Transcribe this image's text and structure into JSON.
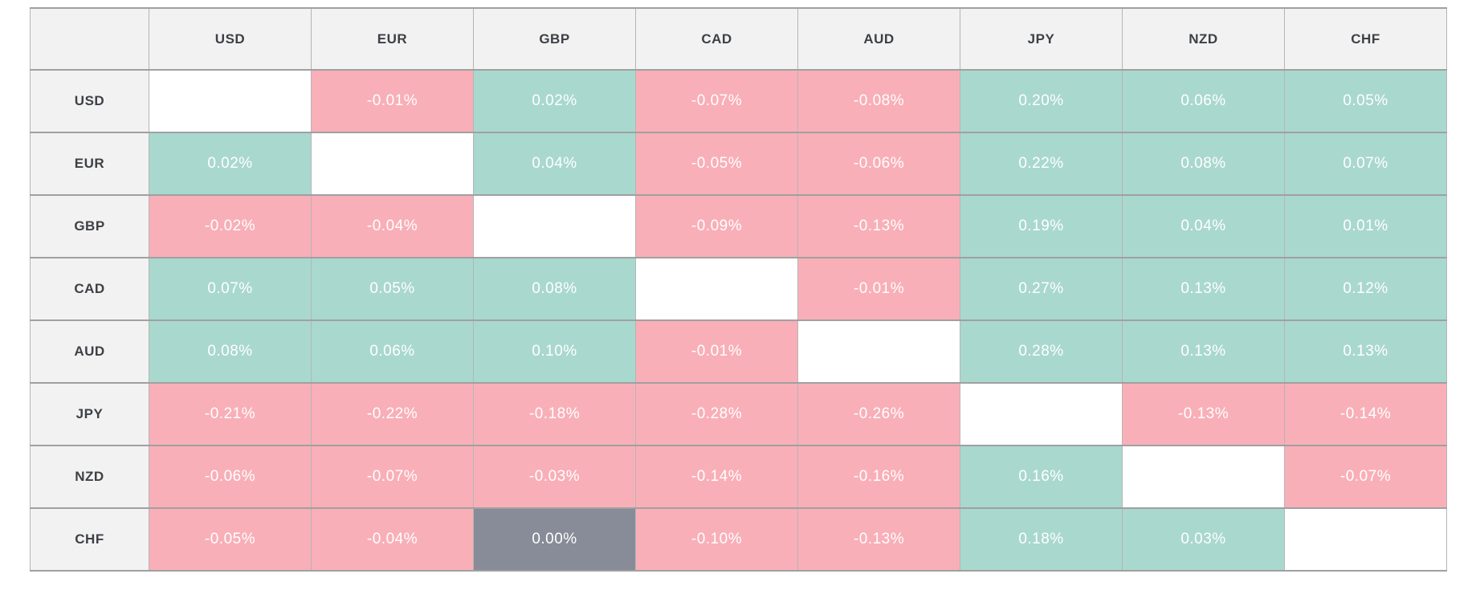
{
  "matrix": {
    "columns": [
      "USD",
      "EUR",
      "GBP",
      "CAD",
      "AUD",
      "JPY",
      "NZD",
      "CHF"
    ],
    "rows": [
      {
        "label": "USD",
        "values": [
          "",
          "-0.01%",
          "0.02%",
          "-0.07%",
          "-0.08%",
          "0.20%",
          "0.06%",
          "0.05%"
        ]
      },
      {
        "label": "EUR",
        "values": [
          "0.02%",
          "",
          "0.04%",
          "-0.05%",
          "-0.06%",
          "0.22%",
          "0.08%",
          "0.07%"
        ]
      },
      {
        "label": "GBP",
        "values": [
          "-0.02%",
          "-0.04%",
          "",
          "-0.09%",
          "-0.13%",
          "0.19%",
          "0.04%",
          "0.01%"
        ]
      },
      {
        "label": "CAD",
        "values": [
          "0.07%",
          "0.05%",
          "0.08%",
          "",
          "-0.01%",
          "0.27%",
          "0.13%",
          "0.12%"
        ]
      },
      {
        "label": "AUD",
        "values": [
          "0.08%",
          "0.06%",
          "0.10%",
          "-0.01%",
          "",
          "0.28%",
          "0.13%",
          "0.13%"
        ]
      },
      {
        "label": "JPY",
        "values": [
          "-0.21%",
          "-0.22%",
          "-0.18%",
          "-0.28%",
          "-0.26%",
          "",
          "-0.13%",
          "-0.14%"
        ]
      },
      {
        "label": "NZD",
        "values": [
          "-0.06%",
          "-0.07%",
          "-0.03%",
          "-0.14%",
          "-0.16%",
          "0.16%",
          "",
          "-0.07%"
        ]
      },
      {
        "label": "CHF",
        "values": [
          "-0.05%",
          "-0.04%",
          "0.00%",
          "-0.10%",
          "-0.13%",
          "0.18%",
          "0.03%",
          ""
        ]
      }
    ]
  },
  "colors": {
    "positive": "#a9d8cf",
    "negative": "#f9afb8",
    "zero": "#878c98",
    "empty": "#ffffff",
    "header_bg": "#f2f2f2",
    "header_text": "#3d4045",
    "cell_text": "#ffffff",
    "grid_vertical": "#b5b5b5",
    "grid_horizontal": "#a0a0a0"
  },
  "chart_data": {
    "type": "heatmap",
    "title": "",
    "x_categories": [
      "USD",
      "EUR",
      "GBP",
      "CAD",
      "AUD",
      "JPY",
      "NZD",
      "CHF"
    ],
    "y_categories": [
      "USD",
      "EUR",
      "GBP",
      "CAD",
      "AUD",
      "JPY",
      "NZD",
      "CHF"
    ],
    "unit": "%",
    "value_format": "two decimals with % suffix",
    "values": [
      [
        null,
        -0.01,
        0.02,
        -0.07,
        -0.08,
        0.2,
        0.06,
        0.05
      ],
      [
        0.02,
        null,
        0.04,
        -0.05,
        -0.06,
        0.22,
        0.08,
        0.07
      ],
      [
        -0.02,
        -0.04,
        null,
        -0.09,
        -0.13,
        0.19,
        0.04,
        0.01
      ],
      [
        0.07,
        0.05,
        0.08,
        null,
        -0.01,
        0.27,
        0.13,
        0.12
      ],
      [
        0.08,
        0.06,
        0.1,
        -0.01,
        null,
        0.28,
        0.13,
        0.13
      ],
      [
        -0.21,
        -0.22,
        -0.18,
        -0.28,
        -0.26,
        null,
        -0.13,
        -0.14
      ],
      [
        -0.06,
        -0.07,
        -0.03,
        -0.14,
        -0.16,
        0.16,
        null,
        -0.07
      ],
      [
        -0.05,
        -0.04,
        0.0,
        -0.1,
        -0.13,
        0.18,
        0.03,
        null
      ]
    ],
    "color_rules": {
      "positive": "#a9d8cf",
      "negative": "#f9afb8",
      "zero": "#878c98",
      "diagonal_empty": "#ffffff"
    },
    "legend_position": "none",
    "grid": true
  }
}
